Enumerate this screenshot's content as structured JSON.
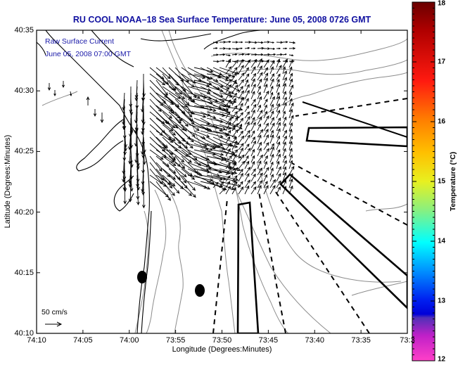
{
  "title": "RU COOL  NOAA–18  Sea Surface Temperature:  June 05, 2008 0726 GMT",
  "annotations": {
    "line1": "Raw Surface Current",
    "line2": "June 05, 2008 07:00 GMT"
  },
  "scale_arrow": {
    "label": "50 cm/s"
  },
  "chart_data": {
    "type": "map",
    "title": "RU COOL  NOAA–18  Sea Surface Temperature:  June 05, 2008 0726 GMT",
    "xlabel": "Longitude (Degrees:Minutes)",
    "ylabel": "Latitude (Degrees:Minutes)",
    "x_ticks": [
      "74:10",
      "74:05",
      "74:00",
      "73:55",
      "73:50",
      "73:45",
      "73:40",
      "73:35",
      "73:3"
    ],
    "y_ticks": [
      "40:35",
      "40:30",
      "40:25",
      "40:20",
      "40:15",
      "40:10"
    ],
    "xlim_minutes_west": [
      70,
      30
    ],
    "ylim_minutes_north": [
      10,
      35
    ],
    "colorbar": {
      "label": "Temperature (°C)",
      "ticks": [
        "18",
        "17",
        "16",
        "15",
        "14",
        "13",
        "12"
      ],
      "range": [
        12,
        18
      ],
      "colors": [
        "#6a0000",
        "#ff1010",
        "#ff8c00",
        "#ffe000",
        "#90f080",
        "#00ffff",
        "#0050ff",
        "#0000e0",
        "#6030b0",
        "#ff20c0",
        "#ff40d0"
      ]
    },
    "markers": [
      {
        "type": "filled-ellipse",
        "lon_min_w": 59.0,
        "lat_min_n": 14.7
      },
      {
        "type": "filled-ellipse",
        "lon_min_w": 52.3,
        "lat_min_n": 13.5
      }
    ]
  }
}
